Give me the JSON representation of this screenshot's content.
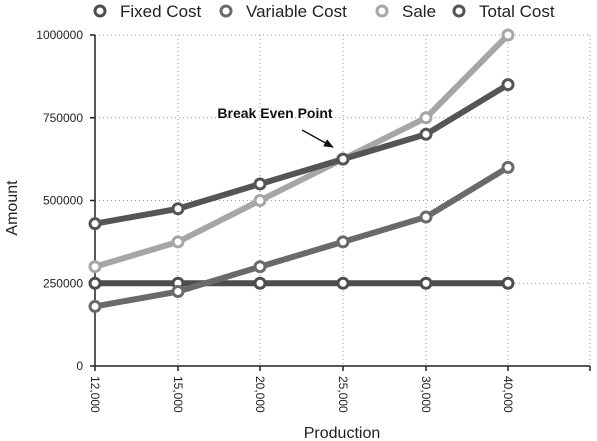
{
  "chart_data": {
    "type": "line",
    "categories": [
      "12,000",
      "15,000",
      "20,000",
      "25,000",
      "30,000",
      "40,000"
    ],
    "xlabel": "Production",
    "ylabel": "Amount",
    "ylim": [
      0,
      1000000
    ],
    "yticks": [
      0,
      250000,
      500000,
      750000,
      1000000
    ],
    "ytick_labels": [
      "0",
      "250000",
      "500000",
      "750000",
      "1000000"
    ],
    "grid": true,
    "legend_position": "top",
    "series": [
      {
        "name": "Fixed Cost",
        "color": "#4d4d4d",
        "values": [
          250000,
          250000,
          250000,
          250000,
          250000,
          250000
        ]
      },
      {
        "name": "Variable Cost",
        "color": "#6a6a6a",
        "values": [
          180000,
          225000,
          300000,
          375000,
          450000,
          600000
        ]
      },
      {
        "name": "Sale",
        "color": "#a6a6a6",
        "values": [
          300000,
          375000,
          500000,
          625000,
          750000,
          1000000
        ]
      },
      {
        "name": "Total Cost",
        "color": "#555555",
        "values": [
          430000,
          475000,
          550000,
          625000,
          700000,
          850000
        ]
      }
    ],
    "annotation": {
      "text": "Break Even Point",
      "category": "25,000",
      "value": 625000
    }
  }
}
